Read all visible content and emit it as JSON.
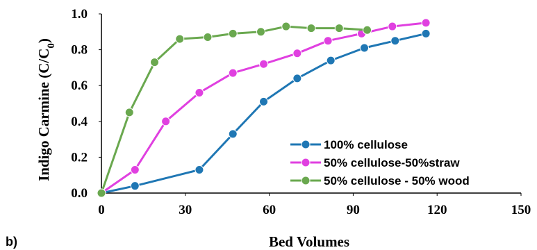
{
  "panel_label": "b)",
  "chart_data": {
    "type": "line",
    "xlabel": "Bed Volumes",
    "ylabel": "Indigo Carmine (C/C",
    "ylabel_subscript": "0",
    "ylabel_suffix": ")",
    "xlim": [
      0,
      150
    ],
    "ylim": [
      0.0,
      1.0
    ],
    "xticks": [
      0,
      30,
      60,
      90,
      120,
      150
    ],
    "yticks": [
      "0.0",
      "0.2",
      "0.4",
      "0.6",
      "0.8",
      "1.0"
    ],
    "grid": false,
    "legend_position": "bottom-right",
    "series": [
      {
        "name": "100% cellulose",
        "color": "#1f77b4",
        "x": [
          0,
          12,
          35,
          47,
          58,
          70,
          82,
          94,
          105,
          116
        ],
        "y": [
          0.0,
          0.04,
          0.13,
          0.33,
          0.51,
          0.64,
          0.74,
          0.81,
          0.85,
          0.89
        ]
      },
      {
        "name": "50% cellulose-50%straw",
        "color": "#e040e0",
        "x": [
          0,
          12,
          23,
          35,
          47,
          58,
          70,
          81,
          93,
          104,
          116
        ],
        "y": [
          0.0,
          0.13,
          0.4,
          0.56,
          0.67,
          0.72,
          0.78,
          0.85,
          0.89,
          0.93,
          0.95
        ]
      },
      {
        "name": "50% cellulose - 50% wood",
        "color": "#6aa84f",
        "x": [
          0,
          10,
          19,
          28,
          38,
          47,
          57,
          66,
          75,
          85,
          95
        ],
        "y": [
          0.0,
          0.45,
          0.73,
          0.86,
          0.87,
          0.89,
          0.9,
          0.93,
          0.92,
          0.92,
          0.91
        ]
      }
    ]
  }
}
